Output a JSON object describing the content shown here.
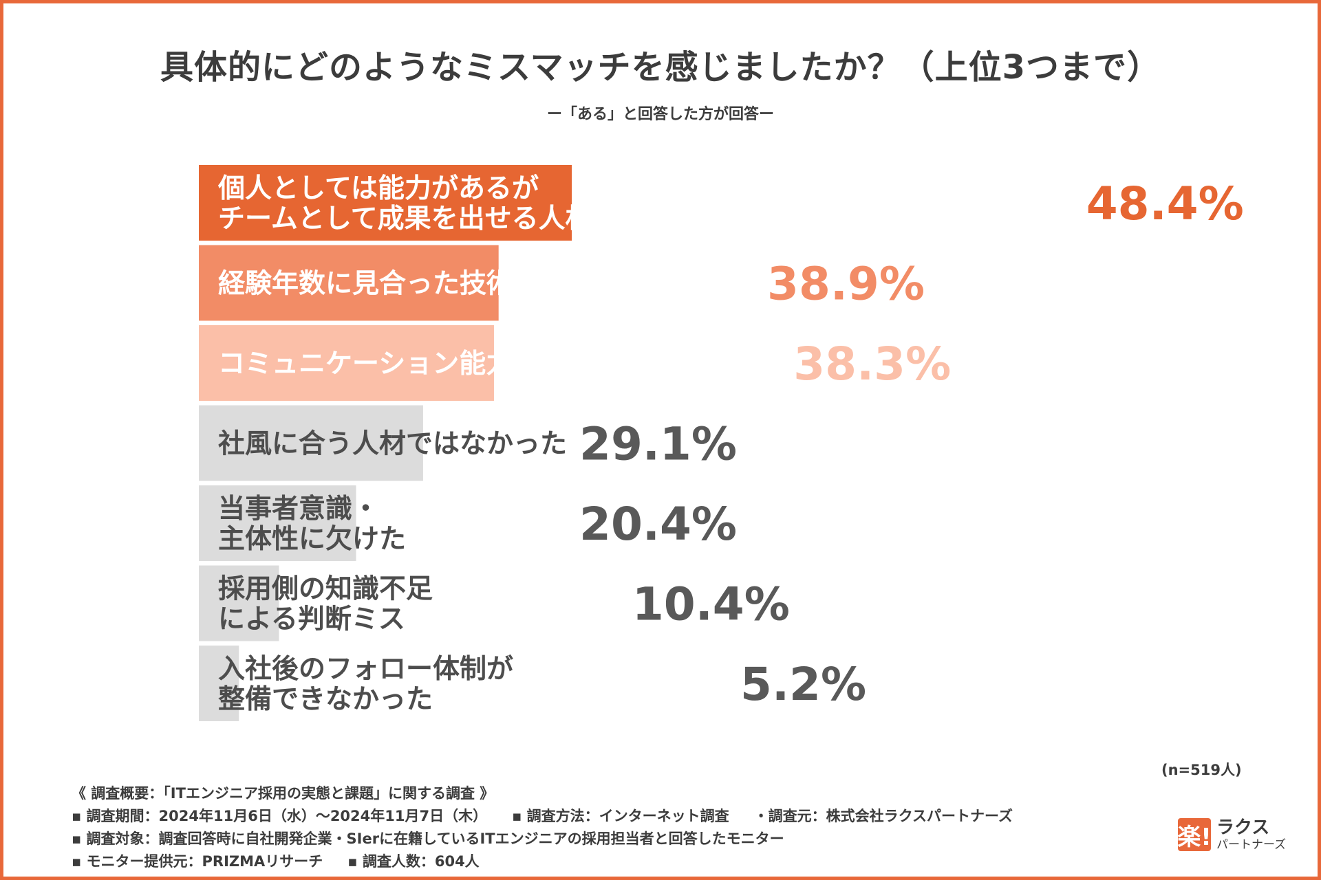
{
  "header": {
    "title": "具体的にどのようなミスマッチを感じましたか？（上位3つまで）",
    "subtitle": "ー「ある」と回答した方が回答ー"
  },
  "chart_data": {
    "type": "bar",
    "orientation": "horizontal",
    "unit": "%",
    "xlim": [
      0,
      100
    ],
    "categories": [
      "個人としては能力があるが\nチームとして成果を出せる人材ではなかった",
      "経験年数に見合った技術スキルではなかった",
      "コミュニケーション能力が期待に合わなかった",
      "社風に合う人材ではなかった",
      "当事者意識・\n主体性に欠けた",
      "採用側の知識不足\nによる判断ミス",
      "入社後のフォロー体制が\n整備できなかった"
    ],
    "values": [
      48.4,
      38.9,
      38.3,
      29.1,
      20.4,
      10.4,
      5.2
    ],
    "value_labels": [
      "48.4%",
      "38.9%",
      "38.3%",
      "29.1%",
      "20.4%",
      "10.4%",
      "5.2%"
    ],
    "bar_colors": [
      "#e66632",
      "#f28c66",
      "#fbbfa8",
      "#dcdcdc",
      "#dcdcdc",
      "#dcdcdc",
      "#dcdcdc"
    ],
    "label_colors": [
      "#ffffff",
      "#ffffff",
      "#ffffff",
      "#4d4d4d",
      "#4d4d4d",
      "#4d4d4d",
      "#4d4d4d"
    ],
    "value_colors": [
      "#e66632",
      "#f28c66",
      "#fbbfa8",
      "#595959",
      "#595959",
      "#595959",
      "#595959"
    ],
    "sample_size": "(n=519人)"
  },
  "footer": {
    "line1": "《 調査概要：「ITエンジニア採用の実態と課題」に関する調査 》",
    "line2a": "▪ 調査期間：2024年11月6日（水）〜2024年11月7日（木）",
    "line2b": "▪ 調査方法：インターネット調査",
    "line2c": "・調査元：株式会社ラクスパートナーズ",
    "line3": "▪ 調査対象：調査回答時に自社開発企業・SIerに在籍しているITエンジニアの採用担当者と回答したモニター",
    "line4a": "▪ モニター提供元：PRIZMAリサーチ",
    "line4b": "▪ 調査人数：604人"
  },
  "logo": {
    "mark": "楽!",
    "name": "ラクス",
    "sub": "パートナーズ"
  },
  "colors": {
    "accent": "#e8683a",
    "text": "#3c3c3c"
  }
}
